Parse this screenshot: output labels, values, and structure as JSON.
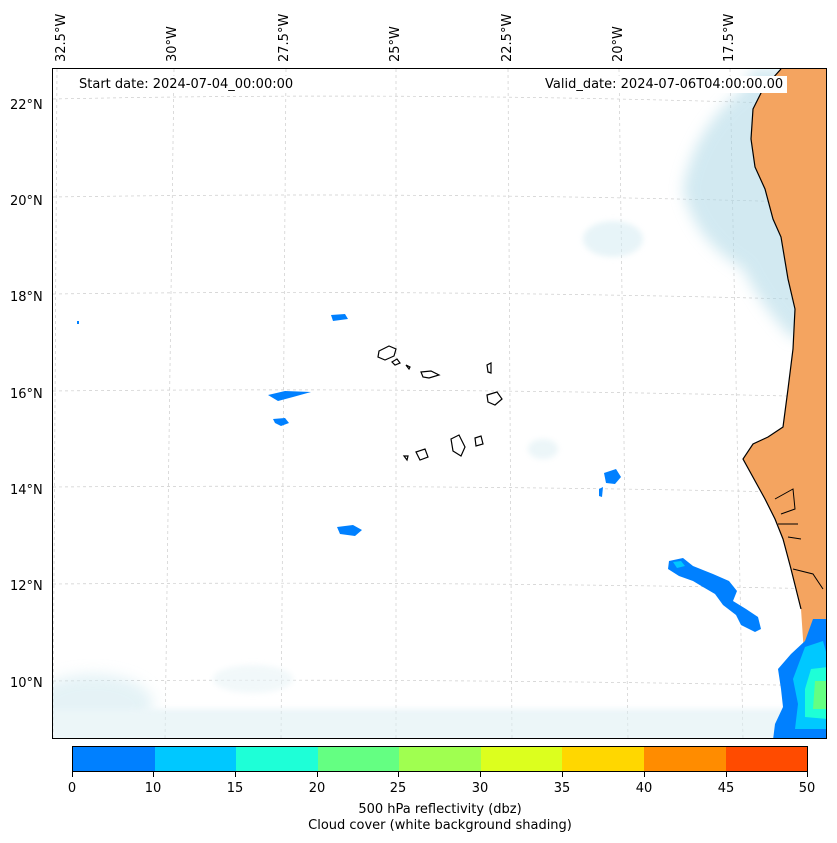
{
  "map": {
    "start_date": "Start date: 2024-07-04_00:00:00",
    "valid_date": "Valid_date: 2024-07-06T04:00:00.00",
    "lat_labels": [
      "22°N",
      "20°N",
      "18°N",
      "16°N",
      "14°N",
      "12°N",
      "10°N"
    ],
    "lon_labels": [
      "32.5°W",
      "30°W",
      "27.5°W",
      "25°W",
      "22.5°W",
      "20°W",
      "17.5°W"
    ],
    "colors": {
      "land_dust": "#f4a460",
      "cloud_blue": "#add8e6",
      "coast": "#000000"
    }
  },
  "colorbar": {
    "ticks": [
      "0",
      "10",
      "15",
      "20",
      "25",
      "30",
      "35",
      "40",
      "45",
      "50"
    ],
    "colors": [
      "#0080ff",
      "#00c8ff",
      "#1effd7",
      "#64ff82",
      "#a0ff50",
      "#dcff1e",
      "#ffd700",
      "#ff8c00",
      "#ff4b00"
    ],
    "label_line1": "500 hPa reflectivity (dbz)",
    "label_line2": "Cloud cover (white background shading)"
  }
}
